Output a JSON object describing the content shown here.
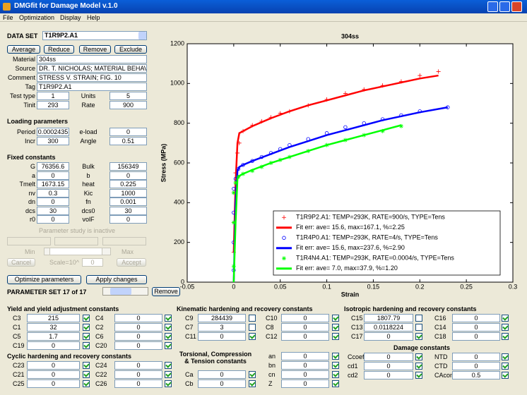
{
  "window": {
    "title": "DMGfit for Damage Model v.1.0",
    "menu": [
      "File",
      "Optimization",
      "Display",
      "Help"
    ]
  },
  "dataset": {
    "label": "DATA SET",
    "selected": "T1R9P2.A1",
    "buttons": [
      "Average",
      "Reduce",
      "Remove",
      "Exclude"
    ],
    "fields": [
      [
        "Material",
        "304ss"
      ],
      [
        "Source",
        "DR. T. NICHOLAS; MATERIAL BEHAVI"
      ],
      [
        "Comment",
        "STRESS V. STRAIN; FIG. 10"
      ],
      [
        "Tag",
        "T1R9P2.A1"
      ]
    ],
    "pairs": [
      [
        "Test type",
        "1",
        "Units",
        "5"
      ],
      [
        "Tinit",
        "293",
        "Rate",
        "900"
      ]
    ]
  },
  "loading": {
    "title": "Loading parameters",
    "pairs": [
      [
        "Period",
        "0.0002435",
        "e-load",
        "0"
      ],
      [
        "Incr",
        "300",
        "Angle",
        "0.51"
      ]
    ]
  },
  "fixed": {
    "title": "Fixed constants",
    "pairs": [
      [
        "G",
        "76356.6",
        "Bulk",
        "156349"
      ],
      [
        "a",
        "0",
        "b",
        "0"
      ],
      [
        "Tmelt",
        "1673.15",
        "heat",
        "0.225"
      ],
      [
        "nv",
        "0.3",
        "Kic",
        "1000"
      ],
      [
        "dn",
        "0",
        "fn",
        "0.001"
      ],
      [
        "dcs",
        "30",
        "dcs0",
        "30"
      ],
      [
        "r0",
        "0",
        "volF",
        "0"
      ]
    ]
  },
  "study": {
    "status": "Parameter study is inactive",
    "min": "Min",
    "max": "Max",
    "cancel": "Cancel",
    "scale": "Scale=10^",
    "scale_value": "0",
    "accept": "Accept"
  },
  "actions": {
    "optimize": "Optimize parameters",
    "apply": "Apply changes",
    "set": "PARAMETER SET 17 of 17",
    "remove": "Remove"
  },
  "groups": [
    {
      "title": "Yield and yield adjustment constants",
      "rows": [
        [
          "C3",
          "215",
          true,
          "C4",
          "0",
          true
        ],
        [
          "C1",
          "32",
          true,
          "C2",
          "0",
          true
        ],
        [
          "C5",
          "1.7",
          true,
          "C6",
          "0",
          true
        ],
        [
          "C19",
          "0",
          true,
          "C20",
          "0",
          true
        ]
      ]
    },
    {
      "title": "Cyclic hardening and recovery constants",
      "rows": [
        [
          "C23",
          "0",
          true,
          "C24",
          "0",
          true
        ],
        [
          "C21",
          "0",
          true,
          "C22",
          "0",
          true
        ],
        [
          "C25",
          "0",
          true,
          "C26",
          "0",
          true
        ]
      ]
    },
    {
      "title": "Kinematic hardening and recovery constants",
      "rows": [
        [
          "C9",
          "284439",
          false,
          "C10",
          "0",
          true
        ],
        [
          "C7",
          "3",
          false,
          "C8",
          "0",
          true
        ],
        [
          "C11",
          "0",
          true,
          "C12",
          "0",
          true
        ]
      ]
    },
    {
      "title": "Torsional, Compression & Tension constants",
      "rows": [
        [
          "Ca",
          "0",
          true
        ],
        [
          "Cb",
          "0",
          true
        ]
      ]
    },
    {
      "rows": [
        [
          "an",
          "0",
          true
        ],
        [
          "bn",
          "0",
          true
        ],
        [
          "cn",
          "0",
          true
        ],
        [
          "Z",
          "0",
          true
        ]
      ]
    },
    {
      "title": "Isotropic hardening and recovery constants",
      "rows": [
        [
          "C15",
          "1807.79",
          false,
          "C16",
          "0",
          true
        ],
        [
          "C13",
          "0.0118224",
          false,
          "C14",
          "0",
          true
        ],
        [
          "C17",
          "0",
          true,
          "C18",
          "0",
          true
        ]
      ]
    },
    {
      "title": "Damage constants",
      "rows": [
        [
          "Ccoef",
          "0",
          true,
          "NTD",
          "0",
          true
        ],
        [
          "cd1",
          "0",
          true,
          "CTD",
          "0",
          true
        ],
        [
          "cd2",
          "0",
          true,
          "CAcon",
          "0.5",
          true
        ]
      ]
    }
  ],
  "chart_data": {
    "type": "scatter",
    "title": "304ss",
    "xlabel": "Strain",
    "ylabel": "Stress (MPa)",
    "xlim": [
      -0.05,
      0.3
    ],
    "xticks": [
      -0.05,
      0,
      0.05,
      0.1,
      0.15,
      0.2,
      0.25,
      0.3
    ],
    "ylim": [
      0,
      1200
    ],
    "yticks": [
      0,
      200,
      400,
      600,
      800,
      1000,
      1200
    ],
    "legend": "lower right",
    "series": [
      {
        "name": "T1R9P2.A1: TEMP=293K, RATE=900/s, TYPE=Tens",
        "color": "#ff0000",
        "style": "plus",
        "x": [
          0,
          0,
          0,
          0.002,
          0.004,
          0.006,
          0.01,
          0.02,
          0.03,
          0.04,
          0.05,
          0.06,
          0.08,
          0.1,
          0.12,
          0.14,
          0.16,
          0.18,
          0.2,
          0.22
        ],
        "values": [
          150,
          300,
          450,
          550,
          650,
          700,
          760,
          790,
          810,
          830,
          850,
          860,
          890,
          920,
          950,
          970,
          990,
          1010,
          1040,
          1060
        ]
      },
      {
        "name": "Fit err: ave= 15.6, max=167.1, %=2.25",
        "color": "#ff0000",
        "style": "line",
        "x": [
          0,
          0.002,
          0.004,
          0.006,
          0.01,
          0.02,
          0.04,
          0.06,
          0.08,
          0.1,
          0.12,
          0.14,
          0.16,
          0.18,
          0.2,
          0.22
        ],
        "values": [
          150,
          500,
          700,
          750,
          760,
          785,
          825,
          860,
          890,
          915,
          940,
          965,
          985,
          1005,
          1025,
          1040
        ]
      },
      {
        "name": "T1R4P0.A1: TEMP=293K, RATE=4/s, TYPE=Tens",
        "color": "#0000ff",
        "style": "circle",
        "x": [
          0,
          0,
          0,
          0,
          0.002,
          0.005,
          0.01,
          0.02,
          0.03,
          0.04,
          0.05,
          0.06,
          0.08,
          0.1,
          0.12,
          0.14,
          0.16,
          0.18,
          0.2,
          0.23
        ],
        "values": [
          60,
          200,
          350,
          470,
          520,
          570,
          590,
          610,
          630,
          650,
          670,
          690,
          720,
          750,
          780,
          800,
          820,
          840,
          860,
          880
        ]
      },
      {
        "name": "Fit err: ave= 15.6, max=237.6, %=2.90",
        "color": "#0000ff",
        "style": "line",
        "x": [
          0,
          0.002,
          0.004,
          0.006,
          0.01,
          0.02,
          0.04,
          0.06,
          0.08,
          0.1,
          0.12,
          0.14,
          0.16,
          0.18,
          0.2,
          0.23
        ],
        "values": [
          0,
          400,
          560,
          580,
          590,
          610,
          645,
          680,
          710,
          740,
          765,
          790,
          815,
          835,
          855,
          880
        ]
      },
      {
        "name": "T1R4N4.A1: TEMP=293K, RATE=0.0004/s, TYPE=Tens",
        "color": "#00ff00",
        "style": "star",
        "x": [
          0,
          0,
          0,
          0.002,
          0.005,
          0.01,
          0.02,
          0.03,
          0.04,
          0.05,
          0.06,
          0.08,
          0.1,
          0.12,
          0.14,
          0.16,
          0.18
        ],
        "values": [
          80,
          300,
          450,
          500,
          530,
          545,
          560,
          580,
          600,
          615,
          630,
          660,
          690,
          715,
          740,
          760,
          785
        ]
      },
      {
        "name": "Fit err: ave= 7.0, max=37.9, %=1.20",
        "color": "#00ff00",
        "style": "line",
        "x": [
          0,
          0.002,
          0.004,
          0.006,
          0.01,
          0.02,
          0.04,
          0.06,
          0.08,
          0.1,
          0.12,
          0.14,
          0.16,
          0.18
        ],
        "values": [
          0,
          300,
          520,
          535,
          545,
          565,
          600,
          630,
          660,
          690,
          715,
          740,
          765,
          790
        ]
      }
    ]
  }
}
